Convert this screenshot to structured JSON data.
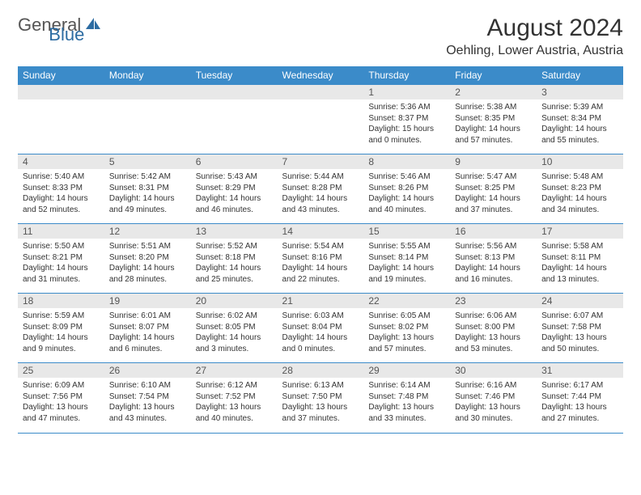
{
  "logo": {
    "text1": "General",
    "text2": "Blue"
  },
  "title": "August 2024",
  "location": "Oehling, Lower Austria, Austria",
  "colors": {
    "headerBg": "#3b8bc9",
    "dayBg": "#e8e8e8",
    "border": "#3b8bc9"
  },
  "weekdays": [
    "Sunday",
    "Monday",
    "Tuesday",
    "Wednesday",
    "Thursday",
    "Friday",
    "Saturday"
  ],
  "weeks": [
    [
      null,
      null,
      null,
      null,
      {
        "n": "1",
        "sr": "5:36 AM",
        "ss": "8:37 PM",
        "dl": "15 hours and 0 minutes."
      },
      {
        "n": "2",
        "sr": "5:38 AM",
        "ss": "8:35 PM",
        "dl": "14 hours and 57 minutes."
      },
      {
        "n": "3",
        "sr": "5:39 AM",
        "ss": "8:34 PM",
        "dl": "14 hours and 55 minutes."
      }
    ],
    [
      {
        "n": "4",
        "sr": "5:40 AM",
        "ss": "8:33 PM",
        "dl": "14 hours and 52 minutes."
      },
      {
        "n": "5",
        "sr": "5:42 AM",
        "ss": "8:31 PM",
        "dl": "14 hours and 49 minutes."
      },
      {
        "n": "6",
        "sr": "5:43 AM",
        "ss": "8:29 PM",
        "dl": "14 hours and 46 minutes."
      },
      {
        "n": "7",
        "sr": "5:44 AM",
        "ss": "8:28 PM",
        "dl": "14 hours and 43 minutes."
      },
      {
        "n": "8",
        "sr": "5:46 AM",
        "ss": "8:26 PM",
        "dl": "14 hours and 40 minutes."
      },
      {
        "n": "9",
        "sr": "5:47 AM",
        "ss": "8:25 PM",
        "dl": "14 hours and 37 minutes."
      },
      {
        "n": "10",
        "sr": "5:48 AM",
        "ss": "8:23 PM",
        "dl": "14 hours and 34 minutes."
      }
    ],
    [
      {
        "n": "11",
        "sr": "5:50 AM",
        "ss": "8:21 PM",
        "dl": "14 hours and 31 minutes."
      },
      {
        "n": "12",
        "sr": "5:51 AM",
        "ss": "8:20 PM",
        "dl": "14 hours and 28 minutes."
      },
      {
        "n": "13",
        "sr": "5:52 AM",
        "ss": "8:18 PM",
        "dl": "14 hours and 25 minutes."
      },
      {
        "n": "14",
        "sr": "5:54 AM",
        "ss": "8:16 PM",
        "dl": "14 hours and 22 minutes."
      },
      {
        "n": "15",
        "sr": "5:55 AM",
        "ss": "8:14 PM",
        "dl": "14 hours and 19 minutes."
      },
      {
        "n": "16",
        "sr": "5:56 AM",
        "ss": "8:13 PM",
        "dl": "14 hours and 16 minutes."
      },
      {
        "n": "17",
        "sr": "5:58 AM",
        "ss": "8:11 PM",
        "dl": "14 hours and 13 minutes."
      }
    ],
    [
      {
        "n": "18",
        "sr": "5:59 AM",
        "ss": "8:09 PM",
        "dl": "14 hours and 9 minutes."
      },
      {
        "n": "19",
        "sr": "6:01 AM",
        "ss": "8:07 PM",
        "dl": "14 hours and 6 minutes."
      },
      {
        "n": "20",
        "sr": "6:02 AM",
        "ss": "8:05 PM",
        "dl": "14 hours and 3 minutes."
      },
      {
        "n": "21",
        "sr": "6:03 AM",
        "ss": "8:04 PM",
        "dl": "14 hours and 0 minutes."
      },
      {
        "n": "22",
        "sr": "6:05 AM",
        "ss": "8:02 PM",
        "dl": "13 hours and 57 minutes."
      },
      {
        "n": "23",
        "sr": "6:06 AM",
        "ss": "8:00 PM",
        "dl": "13 hours and 53 minutes."
      },
      {
        "n": "24",
        "sr": "6:07 AM",
        "ss": "7:58 PM",
        "dl": "13 hours and 50 minutes."
      }
    ],
    [
      {
        "n": "25",
        "sr": "6:09 AM",
        "ss": "7:56 PM",
        "dl": "13 hours and 47 minutes."
      },
      {
        "n": "26",
        "sr": "6:10 AM",
        "ss": "7:54 PM",
        "dl": "13 hours and 43 minutes."
      },
      {
        "n": "27",
        "sr": "6:12 AM",
        "ss": "7:52 PM",
        "dl": "13 hours and 40 minutes."
      },
      {
        "n": "28",
        "sr": "6:13 AM",
        "ss": "7:50 PM",
        "dl": "13 hours and 37 minutes."
      },
      {
        "n": "29",
        "sr": "6:14 AM",
        "ss": "7:48 PM",
        "dl": "13 hours and 33 minutes."
      },
      {
        "n": "30",
        "sr": "6:16 AM",
        "ss": "7:46 PM",
        "dl": "13 hours and 30 minutes."
      },
      {
        "n": "31",
        "sr": "6:17 AM",
        "ss": "7:44 PM",
        "dl": "13 hours and 27 minutes."
      }
    ]
  ],
  "labels": {
    "sunrise": "Sunrise: ",
    "sunset": "Sunset: ",
    "daylight": "Daylight: "
  }
}
